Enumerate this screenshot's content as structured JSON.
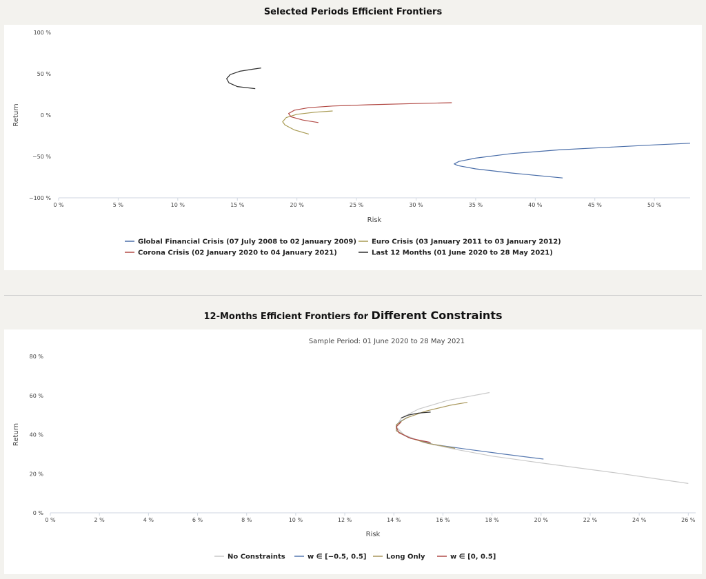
{
  "page": {
    "title1": "Selected Periods Efficient Frontiers",
    "title2_prefix": "12-Months Efficient Frontiers for ",
    "title2_emphasis": "Different Constraints"
  },
  "chart_data": [
    {
      "type": "line",
      "title": "Selected Periods Efficient Frontiers",
      "xlabel": "Risk",
      "ylabel": "Return",
      "xlim": [
        0,
        53
      ],
      "ylim": [
        -100,
        100
      ],
      "x_ticks": [
        "0 %",
        "5 %",
        "10 %",
        "15 %",
        "20 %",
        "25 %",
        "30 %",
        "35 %",
        "40 %",
        "45 %",
        "50 %"
      ],
      "y_ticks": [
        "100 %",
        "50 %",
        "0 %",
        "−50 %",
        "−100 %"
      ],
      "legend_position": "bottom",
      "series": [
        {
          "name": "Global Financial Crisis (07 July 2008 to 02 January 2009)",
          "color": "#4a6ea9",
          "points": [
            [
              42.3,
              -76
            ],
            [
              38,
              -70
            ],
            [
              35,
              -65
            ],
            [
              33.5,
              -61
            ],
            [
              33.2,
              -59
            ],
            [
              33.6,
              -56
            ],
            [
              35,
              -52
            ],
            [
              38,
              -46.5
            ],
            [
              42,
              -42
            ],
            [
              46,
              -39
            ],
            [
              50,
              -36
            ],
            [
              53,
              -34
            ]
          ]
        },
        {
          "name": "Euro Crisis (03 January 2011 to 03 January 2012)",
          "color": "#a89a52",
          "points": [
            [
              21,
              -23
            ],
            [
              19.8,
              -18
            ],
            [
              19,
              -12
            ],
            [
              18.8,
              -8
            ],
            [
              19.1,
              -3
            ],
            [
              20,
              1
            ],
            [
              21.5,
              3.5
            ],
            [
              23,
              5
            ]
          ]
        },
        {
          "name": "Corona Crisis (02 January 2020 to 04 January 2021)",
          "color": "#b24a45",
          "points": [
            [
              21.8,
              -9
            ],
            [
              20.5,
              -6
            ],
            [
              19.5,
              -2
            ],
            [
              19.3,
              2
            ],
            [
              19.8,
              6
            ],
            [
              21,
              9
            ],
            [
              23,
              11
            ],
            [
              26,
              12.5
            ],
            [
              30,
              14
            ],
            [
              33,
              15
            ]
          ]
        },
        {
          "name": "Last 12 Months (01 June 2020 to 28 May 2021)",
          "color": "#2f2f2f",
          "points": [
            [
              16.5,
              32
            ],
            [
              15,
              34.5
            ],
            [
              14.3,
              39
            ],
            [
              14.1,
              44
            ],
            [
              14.4,
              49
            ],
            [
              15.2,
              53
            ],
            [
              16.3,
              55.5
            ],
            [
              17,
              57
            ]
          ]
        }
      ]
    },
    {
      "type": "line",
      "title": "12-Months Efficient Frontiers for Different Constraints",
      "subtitle": "Sample Period: 01 June 2020 to 28 May 2021",
      "xlabel": "Risk",
      "ylabel": "Return",
      "xlim": [
        0,
        26.3
      ],
      "ylim": [
        0,
        80
      ],
      "x_ticks": [
        "0 %",
        "2 %",
        "4 %",
        "6 %",
        "8 %",
        "10 %",
        "12 %",
        "14 %",
        "16 %",
        "18 %",
        "20 %",
        "22 %",
        "24 %",
        "26 %"
      ],
      "y_ticks": [
        "80 %",
        "60 %",
        "40 %",
        "20 %",
        "0 %"
      ],
      "legend_position": "bottom",
      "series": [
        {
          "name": "No Constraints",
          "color": "#c9c9c9",
          "points": [
            [
              26,
              15
            ],
            [
              23,
              20.5
            ],
            [
              20,
              25.5
            ],
            [
              18,
              29
            ],
            [
              16.5,
              32.5
            ],
            [
              15.2,
              36
            ],
            [
              14.4,
              40
            ],
            [
              14.1,
              44
            ],
            [
              14.3,
              48.5
            ],
            [
              15,
              53
            ],
            [
              16.2,
              57.5
            ],
            [
              17.9,
              61.5
            ]
          ]
        },
        {
          "name": "w ∈ [−0.5, 0.5]",
          "color": "#5678b0",
          "points": [
            [
              20.1,
              27.5
            ],
            [
              18.5,
              30
            ],
            [
              17,
              32.5
            ],
            [
              15.6,
              35
            ],
            [
              14.6,
              38.5
            ],
            [
              14.1,
              42
            ],
            [
              14.1,
              45
            ],
            [
              14.3,
              47
            ],
            [
              14.6,
              49
            ]
          ]
        },
        {
          "name": "Long Only",
          "color": "#a8965a",
          "points": [
            [
              16.5,
              33
            ],
            [
              15.4,
              35.5
            ],
            [
              14.6,
              38.5
            ],
            [
              14.1,
              42
            ],
            [
              14.1,
              45
            ],
            [
              14.5,
              48.5
            ],
            [
              15.3,
              52
            ],
            [
              16.3,
              55
            ],
            [
              17,
              56.5
            ]
          ]
        },
        {
          "name": "w ∈ [0, 0.5]",
          "color": "#b04a48",
          "points": [
            [
              15.5,
              36
            ],
            [
              14.7,
              38
            ],
            [
              14.2,
              41
            ],
            [
              14.1,
              44
            ],
            [
              14.3,
              46.5
            ]
          ]
        },
        {
          "name": "",
          "color": "#2f2f2f",
          "points": [
            [
              15.5,
              51.5
            ],
            [
              15,
              51
            ],
            [
              14.6,
              50
            ],
            [
              14.3,
              48.5
            ]
          ]
        }
      ]
    }
  ]
}
